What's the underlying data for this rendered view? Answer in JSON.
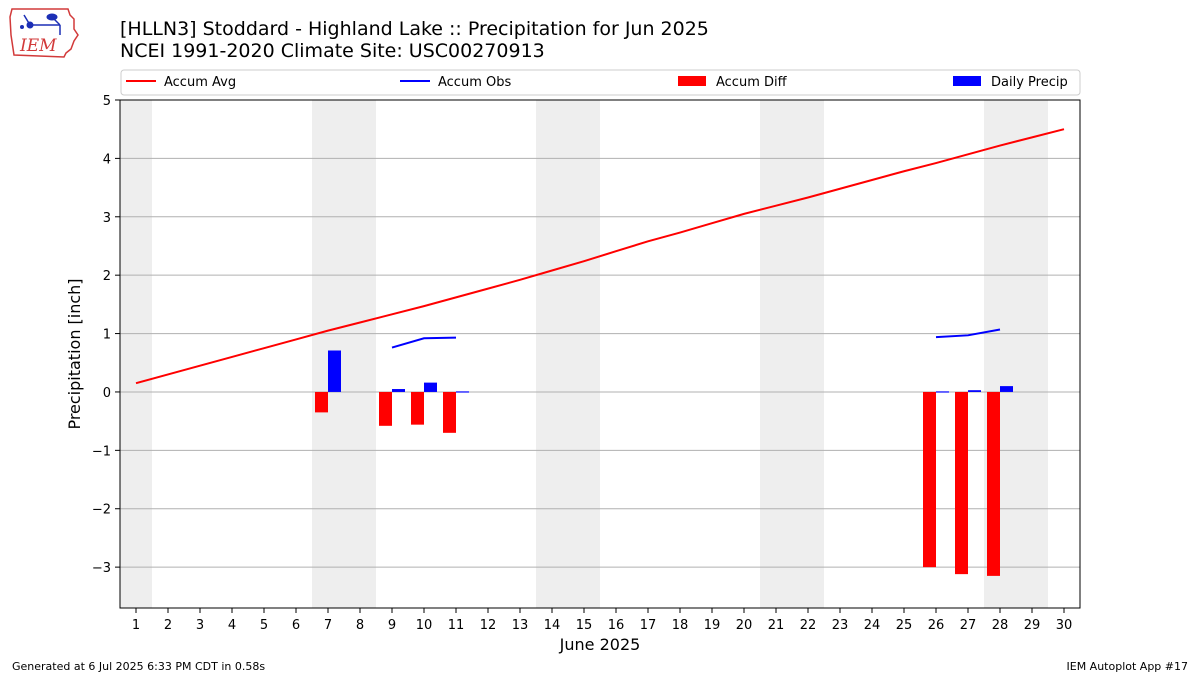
{
  "header": {
    "title_line1": "[HLLN3] Stoddard - Highland Lake :: Precipitation for Jun 2025",
    "title_line2": "NCEI 1991-2020 Climate Site: USC00270913",
    "logo_text": "IEM"
  },
  "footer": {
    "generated": "Generated at 6 Jul 2025 6:33 PM CDT in 0.58s",
    "app": "IEM Autoplot App #17"
  },
  "colors": {
    "accum_avg": "#ff0000",
    "accum_obs": "#0000ff",
    "accum_diff": "#ff0000",
    "daily_precip": "#0000ff",
    "weekend_band": "#eeeeee",
    "grid": "#b0b0b0"
  },
  "chart_data": {
    "type": "bar",
    "xlabel": "June 2025",
    "ylabel": "Precipitation [inch]",
    "ylim": [
      -3.7,
      5
    ],
    "yticks": [
      -3,
      -2,
      -1,
      0,
      1,
      2,
      3,
      4,
      5
    ],
    "ytick_labels": [
      "−3",
      "−2",
      "−1",
      "0",
      "1",
      "2",
      "3",
      "4",
      "5"
    ],
    "x": [
      1,
      2,
      3,
      4,
      5,
      6,
      7,
      8,
      9,
      10,
      11,
      12,
      13,
      14,
      15,
      16,
      17,
      18,
      19,
      20,
      21,
      22,
      23,
      24,
      25,
      26,
      27,
      28,
      29,
      30
    ],
    "xtick_labels": [
      "1",
      "2",
      "3",
      "4",
      "5",
      "6",
      "7",
      "8",
      "9",
      "10",
      "11",
      "12",
      "13",
      "14",
      "15",
      "16",
      "17",
      "18",
      "19",
      "20",
      "21",
      "22",
      "23",
      "24",
      "25",
      "26",
      "27",
      "28",
      "29",
      "30"
    ],
    "grid": true,
    "legend_position": "top",
    "weekend_days": [
      1,
      7,
      8,
      14,
      15,
      21,
      22,
      28,
      29
    ],
    "legend": [
      "Accum Avg",
      "Accum Obs",
      "Accum Diff",
      "Daily Precip"
    ],
    "series": [
      {
        "name": "Accum Avg",
        "kind": "line",
        "values": [
          0.15,
          0.3,
          0.45,
          0.6,
          0.75,
          0.9,
          1.05,
          1.19,
          1.33,
          1.47,
          1.62,
          1.77,
          1.92,
          2.08,
          2.24,
          2.41,
          2.58,
          2.73,
          2.89,
          3.05,
          3.19,
          3.33,
          3.48,
          3.63,
          3.78,
          3.92,
          4.07,
          4.22,
          4.36,
          4.5
        ]
      },
      {
        "name": "Accum Obs",
        "kind": "line",
        "segments": [
          {
            "x": [
              9,
              10,
              11
            ],
            "values": [
              0.76,
              0.92,
              0.93
            ]
          },
          {
            "x": [
              26,
              27,
              28
            ],
            "values": [
              0.94,
              0.97,
              1.07
            ]
          }
        ]
      },
      {
        "name": "Accum Diff",
        "kind": "bar",
        "x": [
          7,
          9,
          10,
          11,
          26,
          27,
          28
        ],
        "values": [
          -0.35,
          -0.58,
          -0.56,
          -0.7,
          -3.0,
          -3.12,
          -3.15
        ]
      },
      {
        "name": "Daily Precip",
        "kind": "bar",
        "x": [
          7,
          9,
          10,
          11,
          26,
          27,
          28
        ],
        "values": [
          0.71,
          0.05,
          0.16,
          0.01,
          0.01,
          0.03,
          0.1
        ]
      }
    ]
  }
}
